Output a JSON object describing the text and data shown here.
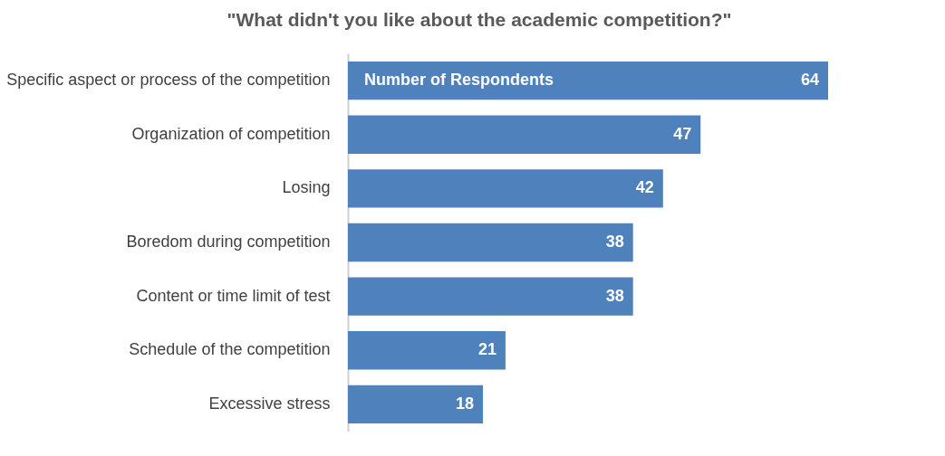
{
  "chart_data": {
    "type": "bar",
    "orientation": "horizontal",
    "title": "\"What didn't you like about the academic competition?\"",
    "categories": [
      "Specific aspect or process of the competition",
      "Organization of competition",
      "Losing",
      "Boredom during competition",
      "Content or time limit of test",
      "Schedule of the competition",
      "Excessive stress"
    ],
    "series": [
      {
        "name": "Number of Respondents",
        "color": "#4f81bd",
        "values": [
          64,
          47,
          42,
          38,
          38,
          21,
          18
        ]
      }
    ],
    "data_labels": true,
    "grid": false
  }
}
